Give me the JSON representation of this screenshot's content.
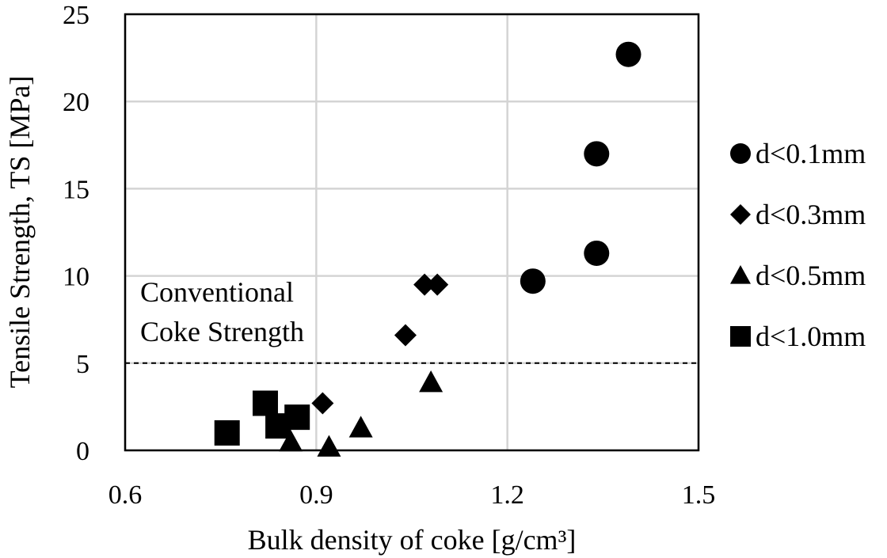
{
  "chart_data": {
    "type": "scatter",
    "title": "",
    "xlabel": "Bulk density of coke [g/cm³]",
    "ylabel": "Tensile Strength, TS [MPa]",
    "xlim": [
      0.6,
      1.5
    ],
    "ylim": [
      0,
      25
    ],
    "x_ticks": [
      "0.6",
      "0.9",
      "1.2",
      "1.5"
    ],
    "y_ticks": [
      "0",
      "5",
      "10",
      "15",
      "20",
      "25"
    ],
    "grid": true,
    "legend_position": "right",
    "series": [
      {
        "name": "d<0.1mm",
        "marker": "circle",
        "points": [
          [
            1.24,
            9.7
          ],
          [
            1.34,
            11.3
          ],
          [
            1.34,
            17.0
          ],
          [
            1.39,
            22.7
          ]
        ]
      },
      {
        "name": "d<0.3mm",
        "marker": "diamond",
        "points": [
          [
            0.91,
            2.7
          ],
          [
            1.04,
            6.6
          ],
          [
            1.07,
            9.5
          ],
          [
            1.09,
            9.5
          ]
        ]
      },
      {
        "name": "d<0.5mm",
        "marker": "triangle",
        "points": [
          [
            0.86,
            0.5
          ],
          [
            0.92,
            0.2
          ],
          [
            0.97,
            1.3
          ],
          [
            1.08,
            3.9
          ]
        ]
      },
      {
        "name": "d<1.0mm",
        "marker": "square",
        "points": [
          [
            0.76,
            1.0
          ],
          [
            0.82,
            2.7
          ],
          [
            0.84,
            1.4
          ],
          [
            0.87,
            1.9
          ]
        ]
      }
    ],
    "reference_line": {
      "y": 5,
      "style": "dashed",
      "label_lines": [
        "Conventional",
        "Coke Strength"
      ]
    }
  }
}
